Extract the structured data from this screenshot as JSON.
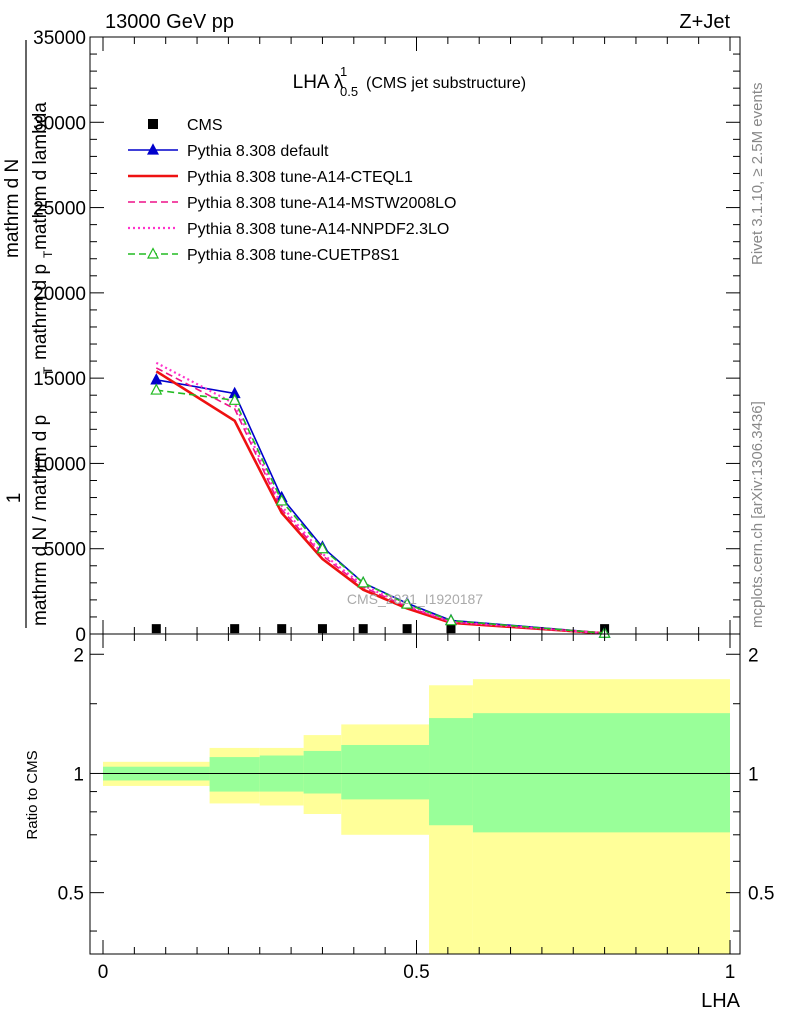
{
  "header": {
    "left": "13000 GeV pp",
    "right": "Z+Jet"
  },
  "side_labels": {
    "rivet": "Rivet 3.1.10, ≥ 2.5M events",
    "mcplots": "mcplots.cern.ch [arXiv:1306.3436]"
  },
  "watermark": "CMS_2021_I1920187",
  "chart_data": [
    {
      "type": "line",
      "title_main": "LHA λ",
      "title_sup": "1",
      "title_sub": "0.5",
      "title_suffix": "(CMS jet substructure)",
      "ylabel_parts": [
        "1",
        "mathrm d N / mathrm d p",
        "T",
        "mathrm d N",
        "mathrm d p",
        "T",
        "mathrm d lambda"
      ],
      "xlim": [
        0,
        1
      ],
      "ylim": [
        0,
        35000
      ],
      "yticks": [
        0,
        5000,
        10000,
        15000,
        20000,
        25000,
        30000,
        35000
      ],
      "ytick_labels": [
        "0",
        "5000",
        "10000",
        "15000",
        "20000",
        "25000",
        "30000",
        "35000"
      ],
      "legend_position": "top-left",
      "x": [
        0.085,
        0.21,
        0.285,
        0.35,
        0.415,
        0.485,
        0.555,
        0.8
      ],
      "series": [
        {
          "name": "CMS",
          "style": "marker",
          "color": "#000000",
          "values": [
            50,
            50,
            50,
            50,
            50,
            50,
            50,
            50
          ]
        },
        {
          "name": "Pythia 8.308 default",
          "style": "solid-triangle",
          "color": "#0000cc",
          "values": [
            14900,
            14100,
            8000,
            5100,
            3000,
            1800,
            800,
            50
          ]
        },
        {
          "name": "Pythia 8.308 tune-A14-CTEQL1",
          "style": "solid-thick",
          "color": "#ee1111",
          "values": [
            15400,
            12500,
            7100,
            4400,
            2600,
            1500,
            650,
            40
          ]
        },
        {
          "name": "Pythia 8.308 tune-A14-MSTW2008LO",
          "style": "dashed",
          "color": "#ee1188",
          "values": [
            15600,
            13200,
            7300,
            4600,
            2750,
            1600,
            700,
            40
          ]
        },
        {
          "name": "Pythia 8.308 tune-A14-NNPDF2.3LO",
          "style": "dotted",
          "color": "#ff33cc",
          "values": [
            15900,
            13500,
            7500,
            4700,
            2850,
            1650,
            720,
            40
          ]
        },
        {
          "name": "Pythia 8.308 tune-CUETP8S1",
          "style": "dashed-open-triangle",
          "color": "#22bb22",
          "values": [
            14300,
            13700,
            7800,
            5000,
            3000,
            1750,
            780,
            45
          ]
        }
      ]
    },
    {
      "type": "area",
      "ylabel": "Ratio to CMS",
      "xlabel": "LHA",
      "xlim": [
        0,
        1
      ],
      "ylim": [
        0.35,
        2.25
      ],
      "xticks": [
        0,
        0.5,
        1
      ],
      "xtick_labels": [
        "0",
        "0.5",
        "1"
      ],
      "yticks": [
        0.5,
        1,
        2
      ],
      "ytick_labels": [
        "0.5",
        "1",
        "2"
      ],
      "reference_line": 1,
      "bins": [
        0,
        0.17,
        0.25,
        0.32,
        0.38,
        0.52,
        0.59,
        1.0
      ],
      "green_band_lower": [
        0.96,
        0.9,
        0.9,
        0.89,
        0.86,
        0.74,
        0.71
      ],
      "green_band_upper": [
        1.04,
        1.1,
        1.11,
        1.14,
        1.18,
        1.38,
        1.42
      ],
      "yellow_band_lower": [
        0.93,
        0.84,
        0.83,
        0.79,
        0.7,
        0.35,
        0.35
      ],
      "yellow_band_upper": [
        1.07,
        1.16,
        1.16,
        1.25,
        1.33,
        1.67,
        1.73
      ],
      "colors": {
        "green": "#99ff99",
        "yellow": "#ffff99"
      }
    }
  ]
}
